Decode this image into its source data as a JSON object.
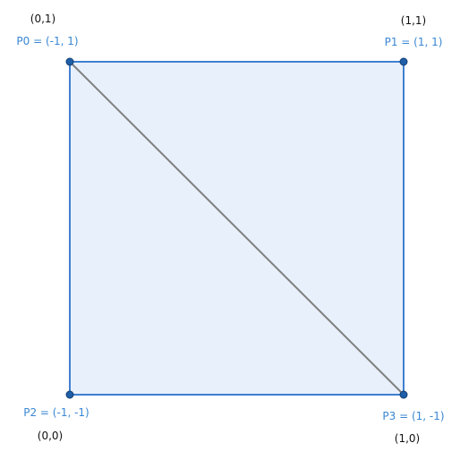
{
  "colors": {
    "fill": "#e8f0fb",
    "edge": "#3f7fd0",
    "diagonal": "#808080",
    "vertex": "#1f5ea8",
    "vertex_label": "#3a87d4",
    "uv_label": "#111111"
  },
  "vertices": [
    {
      "id": "P0",
      "label": "P0 = (-1, 1)",
      "uv": "(0,1)"
    },
    {
      "id": "P1",
      "label": "P1 = (1, 1)",
      "uv": "(1,1)"
    },
    {
      "id": "P2",
      "label": "P2 = (-1, -1)",
      "uv": "(0,0)"
    },
    {
      "id": "P3",
      "label": "P3 = (1, -1)",
      "uv": "(1,0)"
    }
  ]
}
